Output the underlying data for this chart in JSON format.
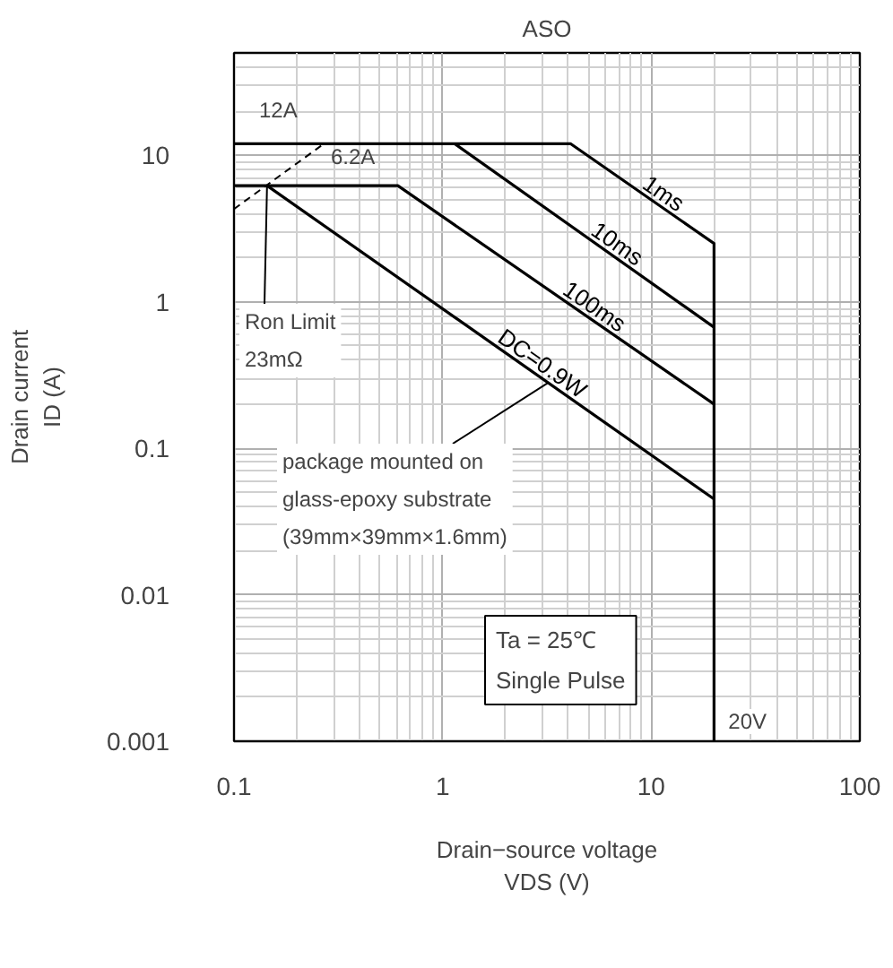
{
  "chart_data": {
    "type": "line",
    "title": "ASO",
    "xlabel": "Drain−source voltage\nVDS (V)",
    "ylabel": "Drain current\nID (A)",
    "log": "xy",
    "grid": true,
    "legend": false,
    "marker": "none",
    "line_style": "solid",
    "xlim": [
      0.1,
      100
    ],
    "xticks": [
      0.1,
      1,
      10,
      100
    ],
    "ylim": [
      0.001,
      50
    ],
    "yticks": [
      0.001,
      0.01,
      0.1,
      1,
      10
    ],
    "series": [
      {
        "name": "1ms",
        "color": "#000000",
        "x": [
          0.1,
          4.1,
          20,
          20
        ],
        "values": [
          12,
          12,
          2.5,
          0.001
        ]
      },
      {
        "name": "10ms",
        "color": "#000000",
        "x": [
          1.14,
          20
        ],
        "values": [
          12,
          0.67
        ]
      },
      {
        "name": "100ms",
        "color": "#000000",
        "x": [
          0.1,
          0.61,
          20
        ],
        "values": [
          6.2,
          6.2,
          0.2
        ]
      },
      {
        "name": "DC=0.9W",
        "color": "#000000",
        "x": [
          0.144,
          20
        ],
        "values": [
          6.2,
          0.045
        ]
      },
      {
        "color": "#000000",
        "line_style": "dashed",
        "x": [
          0.1,
          0.27
        ],
        "values": [
          4.3,
          12
        ]
      }
    ],
    "annotations": [
      "12A",
      "6.2A",
      {
        "text": "Ron Limit\n23mΩ",
        "x": 0.144,
        "y": 6.2
      },
      {
        "text": "package mounted on\nglass-epoxy substrate\n(39mm×39mm×1.6mm)",
        "x": 3.2,
        "y": 0.28
      },
      "Ta = 25℃\nSingle Pulse",
      {
        "text": "20V",
        "x": 20,
        "y": 0.001
      }
    ]
  }
}
